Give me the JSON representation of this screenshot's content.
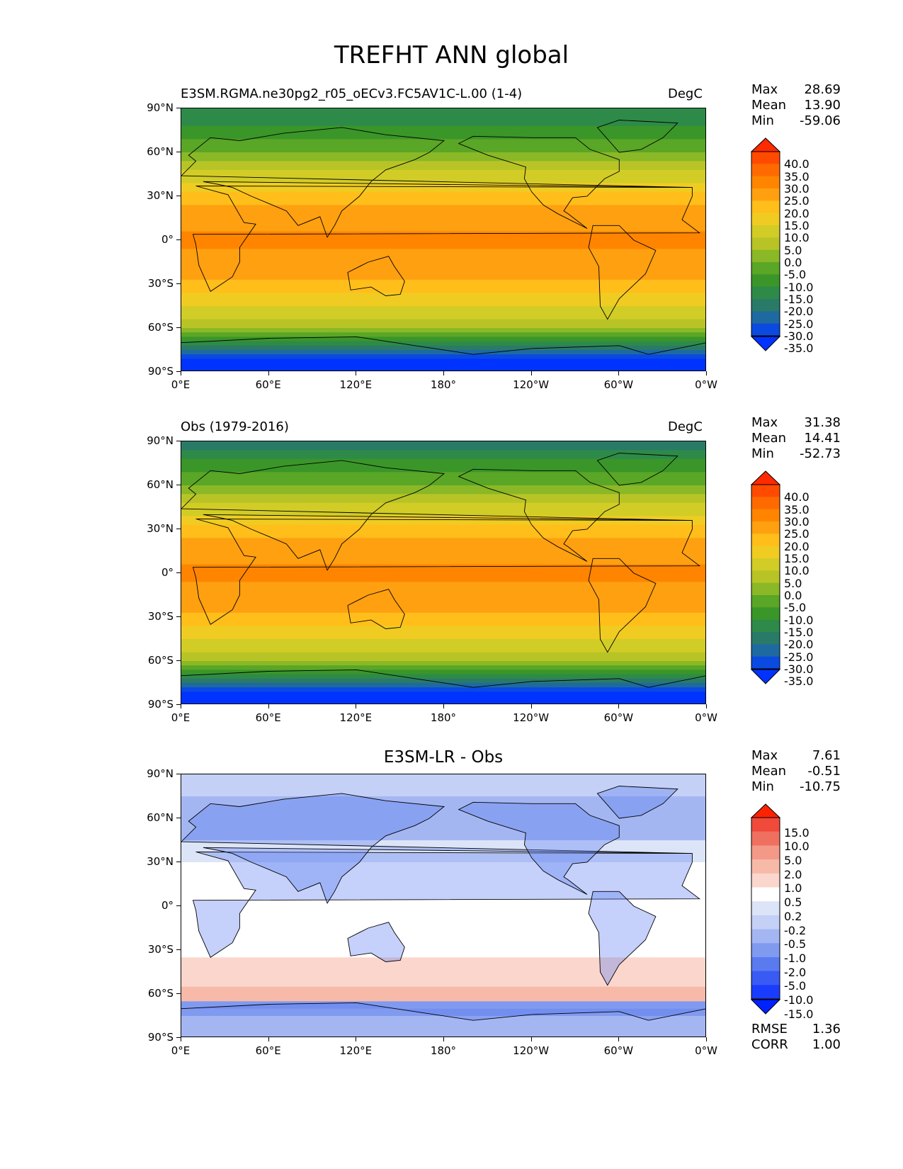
{
  "figure_title": "TREFHT ANN global",
  "lat_ticks": [
    "90°N",
    "60°N",
    "30°N",
    "0°",
    "30°S",
    "60°S",
    "90°S"
  ],
  "lon_ticks": [
    "0°E",
    "60°E",
    "120°E",
    "180°",
    "120°W",
    "60°W",
    "0°W"
  ],
  "panels": [
    {
      "title_left": "E3SM.RGMA.ne30pg2_r05_oECv3.FC5AV1C-L.00 (1-4)",
      "title_right": "DegC",
      "title_center": "",
      "stats": {
        "max_label": "Max",
        "max": "28.69",
        "mean_label": "Mean",
        "mean": "13.90",
        "min_label": "Min",
        "min": "-59.06"
      },
      "colorbar_levels": [
        "40.0",
        "35.0",
        "30.0",
        "25.0",
        "20.0",
        "15.0",
        "10.0",
        "5.0",
        "0.0",
        "-5.0",
        "-10.0",
        "-15.0",
        "-20.0",
        "-25.0",
        "-30.0",
        "-35.0"
      ]
    },
    {
      "title_left": "Obs (1979-2016)",
      "title_right": "DegC",
      "title_center": "",
      "stats": {
        "max_label": "Max",
        "max": "31.38",
        "mean_label": "Mean",
        "mean": "14.41",
        "min_label": "Min",
        "min": "-52.73"
      },
      "colorbar_levels": [
        "40.0",
        "35.0",
        "30.0",
        "25.0",
        "20.0",
        "15.0",
        "10.0",
        "5.0",
        "0.0",
        "-5.0",
        "-10.0",
        "-15.0",
        "-20.0",
        "-25.0",
        "-30.0",
        "-35.0"
      ]
    },
    {
      "title_left": "",
      "title_right": "",
      "title_center": "E3SM-LR - Obs",
      "stats": {
        "max_label": "Max",
        "max": "7.61",
        "mean_label": "Mean",
        "mean": "-0.51",
        "min_label": "Min",
        "min": "-10.75"
      },
      "colorbar_levels": [
        "15.0",
        "10.0",
        "5.0",
        "2.0",
        "1.0",
        "0.5",
        "0.2",
        "-0.2",
        "-0.5",
        "-1.0",
        "-2.0",
        "-5.0",
        "-10.0",
        "-15.0"
      ],
      "metrics": {
        "rmse_label": "RMSE",
        "rmse": "1.36",
        "corr_label": "CORR",
        "corr": "1.00"
      }
    }
  ],
  "colors": {
    "temp_scale": [
      "#ff2a00",
      "#ff4a00",
      "#ff6a00",
      "#ff8500",
      "#ffa010",
      "#ffbe1a",
      "#f0cc22",
      "#d2cc26",
      "#b8c426",
      "#8ab826",
      "#5aa626",
      "#3a9628",
      "#2e8a48",
      "#2a7a68",
      "#1e6aa0",
      "#0a4ae0",
      "#0033ff"
    ],
    "diff_scale": [
      "#ff2200",
      "#f04a3a",
      "#f07060",
      "#f49888",
      "#f8baa8",
      "#fbd6cc",
      "#ffffff",
      "#dce4f8",
      "#c4d0f6",
      "#a4b6f2",
      "#809af0",
      "#5a7af0",
      "#3a5af4",
      "#1a3cff",
      "#0022ff"
    ]
  },
  "chart_data": [
    {
      "type": "heatmap",
      "title": "E3SM.RGMA.ne30pg2_r05_oECv3.FC5AV1C-L.00 (1-4)",
      "units": "DegC",
      "projection": "global lat-lon, 0°E centered",
      "x_ticks": [
        "0°E",
        "60°E",
        "120°E",
        "180°",
        "120°W",
        "60°W",
        "0°W"
      ],
      "y_ticks": [
        "90°N",
        "60°N",
        "30°N",
        "0°",
        "30°S",
        "60°S",
        "90°S"
      ],
      "levels": [
        -35,
        -30,
        -25,
        -20,
        -15,
        -10,
        -5,
        0,
        5,
        10,
        15,
        20,
        25,
        30,
        35,
        40
      ],
      "zonal_mean_estimate": {
        "lat": [
          85,
          60,
          30,
          0,
          -30,
          -60,
          -85
        ],
        "value": [
          -18,
          -5,
          18,
          27,
          19,
          2,
          -45
        ]
      },
      "max": 28.69,
      "mean": 13.9,
      "min": -59.06
    },
    {
      "type": "heatmap",
      "title": "Obs (1979-2016)",
      "units": "DegC",
      "projection": "global lat-lon, 0°E centered",
      "x_ticks": [
        "0°E",
        "60°E",
        "120°E",
        "180°",
        "120°W",
        "60°W",
        "0°W"
      ],
      "y_ticks": [
        "90°N",
        "60°N",
        "30°N",
        "0°",
        "30°S",
        "60°S",
        "90°S"
      ],
      "levels": [
        -35,
        -30,
        -25,
        -20,
        -15,
        -10,
        -5,
        0,
        5,
        10,
        15,
        20,
        25,
        30,
        35,
        40
      ],
      "zonal_mean_estimate": {
        "lat": [
          85,
          60,
          30,
          0,
          -30,
          -60,
          -85
        ],
        "value": [
          -20,
          -5,
          18,
          27,
          19,
          2,
          -42
        ]
      },
      "max": 31.38,
      "mean": 14.41,
      "min": -52.73
    },
    {
      "type": "heatmap",
      "title": "E3SM-LR - Obs",
      "projection": "global lat-lon, 0°E centered",
      "x_ticks": [
        "0°E",
        "60°E",
        "120°E",
        "180°",
        "120°W",
        "60°W",
        "0°W"
      ],
      "y_ticks": [
        "90°N",
        "60°N",
        "30°N",
        "0°",
        "30°S",
        "60°S",
        "90°S"
      ],
      "levels": [
        -15,
        -10,
        -5,
        -2,
        -1,
        -0.5,
        -0.2,
        0.2,
        0.5,
        1,
        2,
        5,
        10,
        15
      ],
      "max": 7.61,
      "mean": -0.51,
      "min": -10.75,
      "rmse": 1.36,
      "corr": 1.0
    }
  ]
}
